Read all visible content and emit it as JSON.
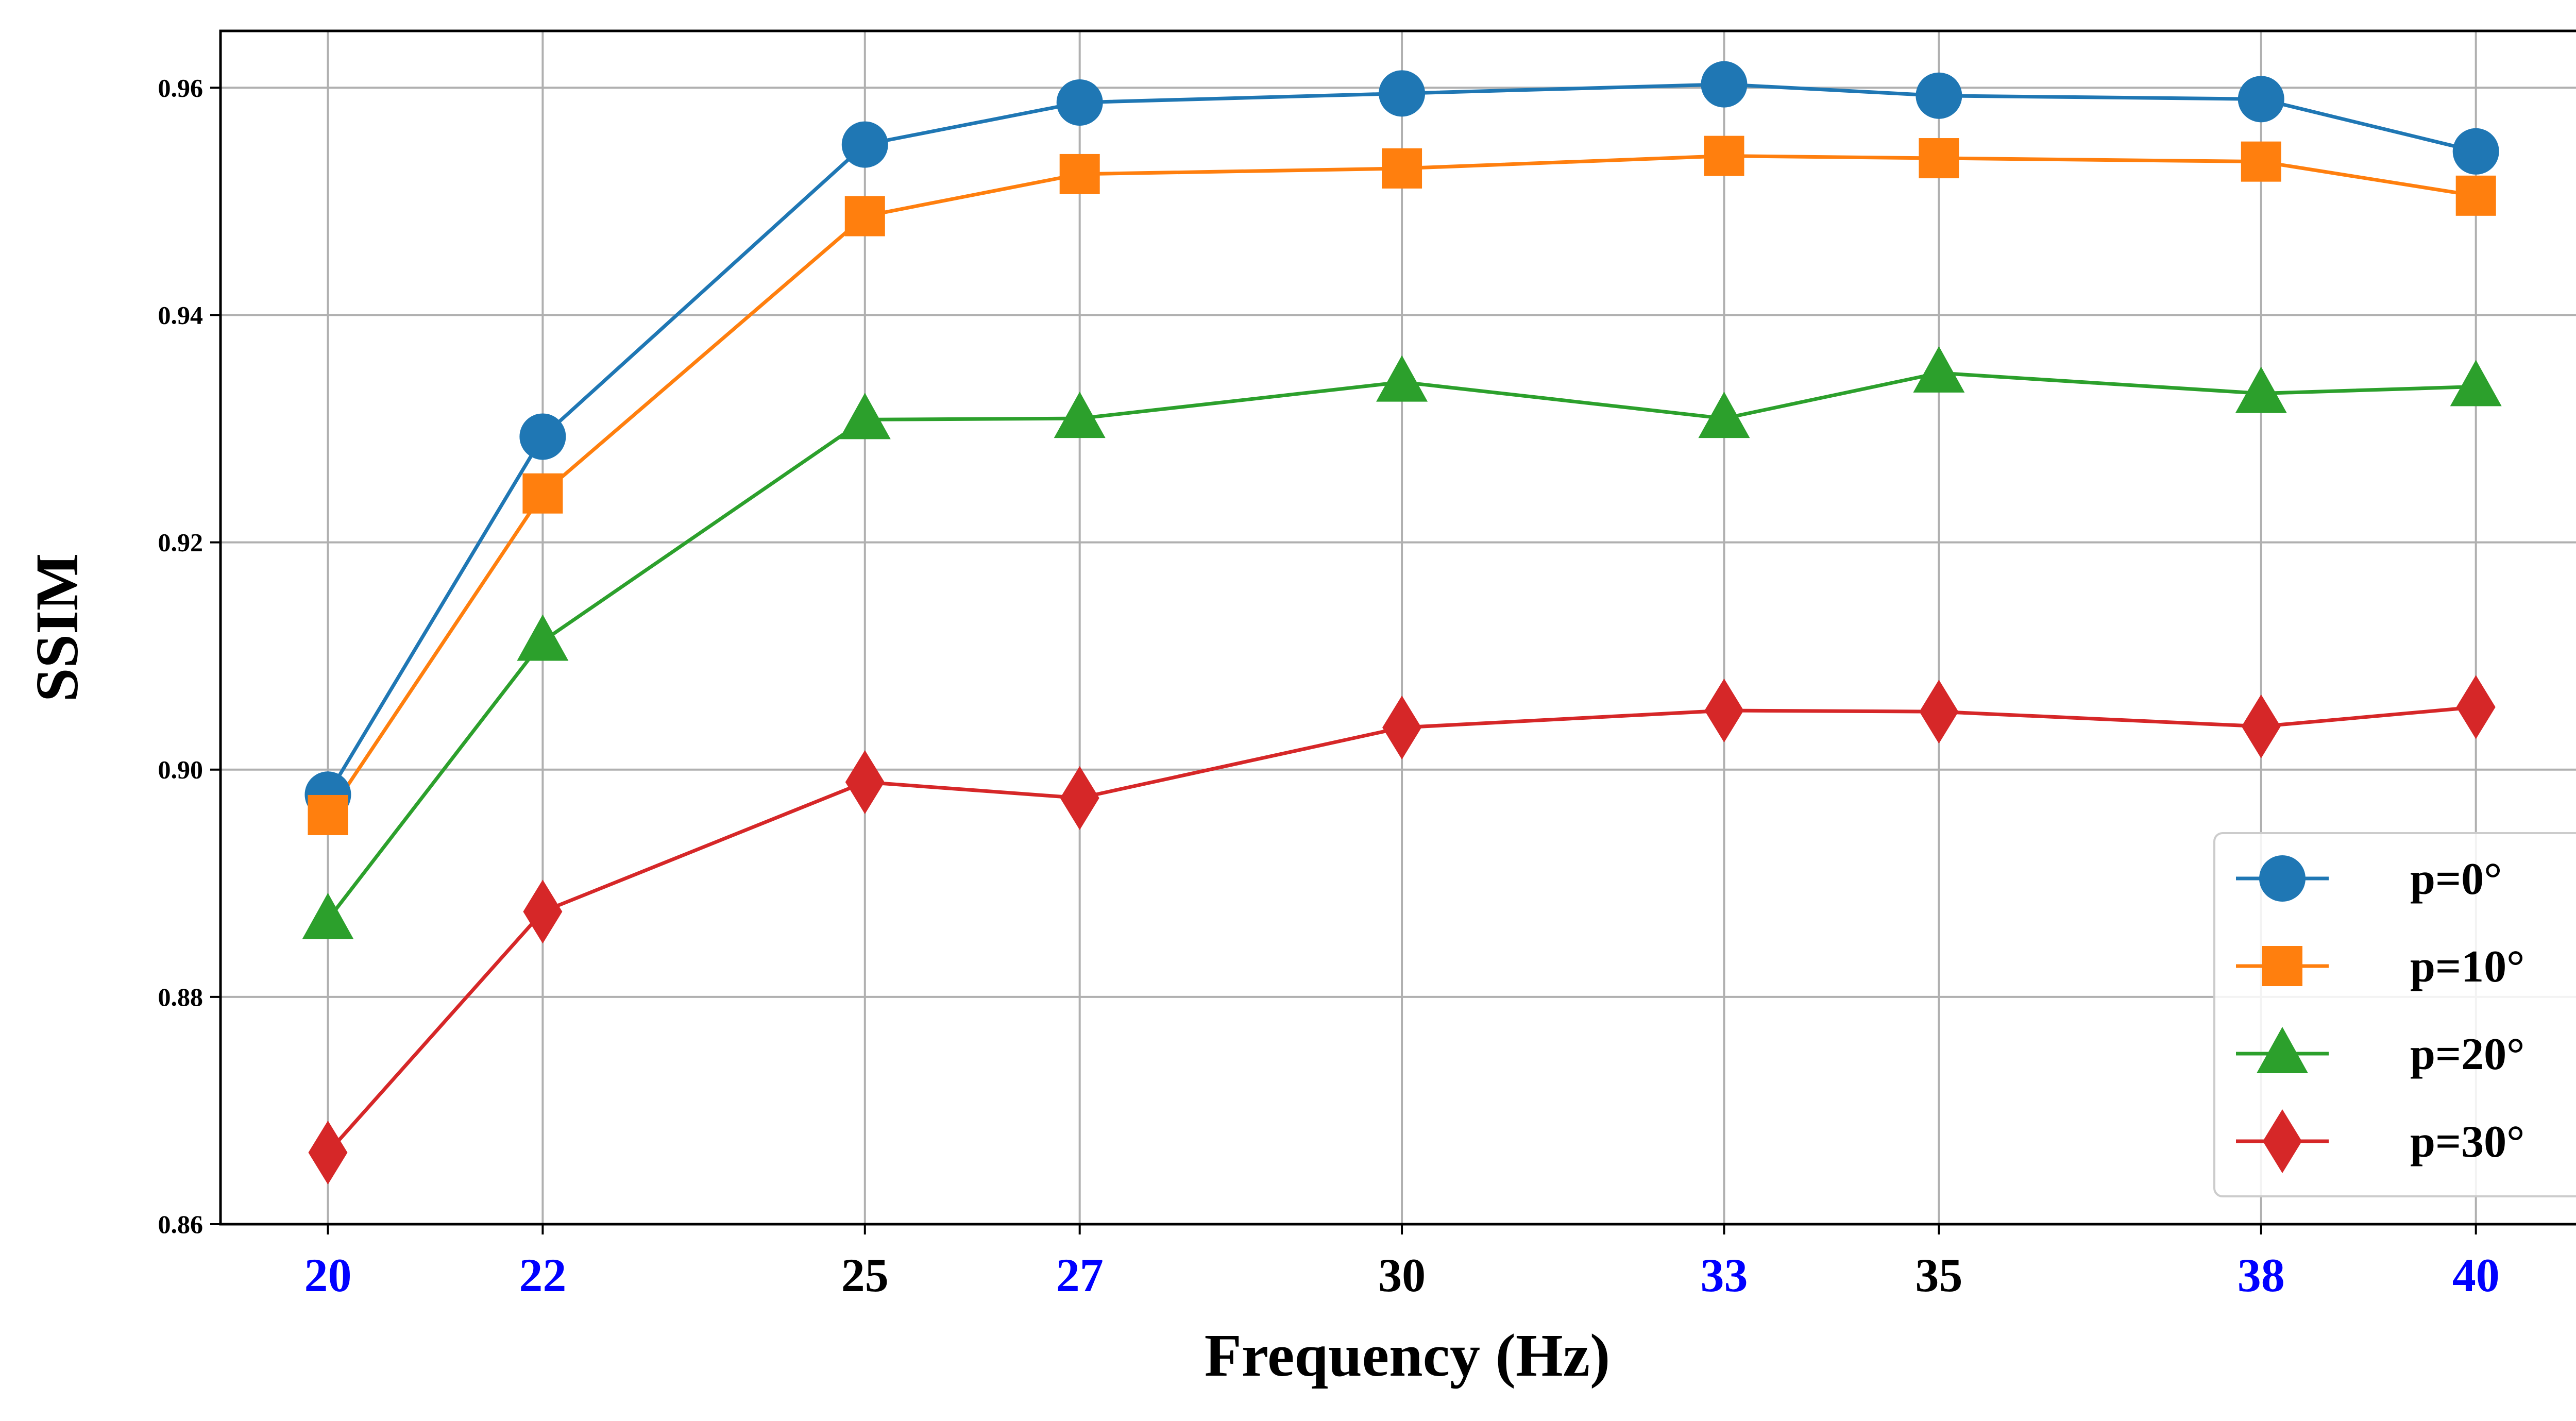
{
  "chart_data": {
    "type": "line",
    "title": "",
    "xlabel": "Frequency (Hz)",
    "ylabel": "SSIM",
    "x": [
      20,
      22,
      25,
      27,
      30,
      33,
      35,
      38,
      40
    ],
    "x_tick_labels": [
      "20",
      "22",
      "25",
      "27",
      "30",
      "33",
      "35",
      "38",
      "40"
    ],
    "x_tick_colors": [
      "#0000ff",
      "#0000ff",
      "#000000",
      "#0000ff",
      "#000000",
      "#0000ff",
      "#000000",
      "#0000ff",
      "#0000ff"
    ],
    "xlim": [
      19,
      41.1
    ],
    "ylim": [
      0.86,
      0.965
    ],
    "y_ticks": [
      0.86,
      0.88,
      0.9,
      0.92,
      0.94,
      0.96
    ],
    "y_tick_labels": [
      "0.86",
      "0.88",
      "0.90",
      "0.92",
      "0.94",
      "0.96"
    ],
    "grid": true,
    "legend_position": "lower-right",
    "series": [
      {
        "name": "p=0°",
        "color": "#1f77b4",
        "marker": "circle",
        "values": [
          0.8978,
          0.9293,
          0.955,
          0.9587,
          0.9595,
          0.9603,
          0.9593,
          0.959,
          0.9544
        ]
      },
      {
        "name": "p=10°",
        "color": "#ff7f0e",
        "marker": "square",
        "values": [
          0.896,
          0.9243,
          0.9487,
          0.9524,
          0.9529,
          0.954,
          0.9538,
          0.9535,
          0.9505
        ]
      },
      {
        "name": "p=20°",
        "color": "#2ca02c",
        "marker": "triangle",
        "values": [
          0.8868,
          0.9113,
          0.9308,
          0.9309,
          0.9341,
          0.9309,
          0.9349,
          0.9331,
          0.9337
        ]
      },
      {
        "name": "p=30°",
        "color": "#d62728",
        "marker": "diamond",
        "values": [
          0.8663,
          0.8875,
          0.8989,
          0.8975,
          0.9037,
          0.9052,
          0.9051,
          0.9038,
          0.9055
        ]
      }
    ]
  }
}
